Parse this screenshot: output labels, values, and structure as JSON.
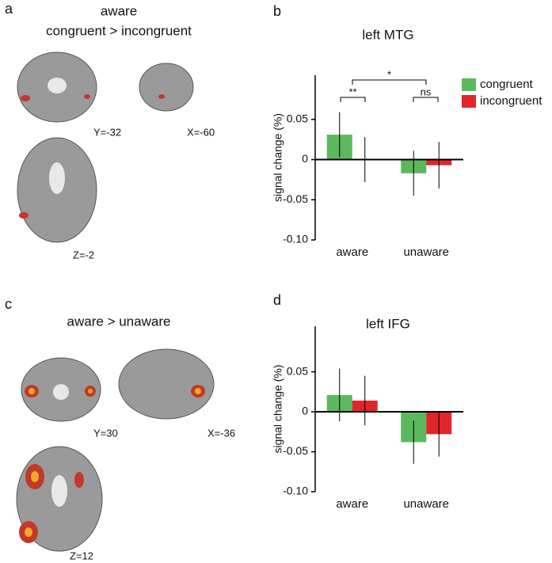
{
  "panels": [
    {
      "label": "a",
      "title": [
        "aware",
        "congruent > incongruent"
      ],
      "slices": [
        "Y=-32",
        "X=-60",
        "Z=-2"
      ]
    },
    {
      "label": "c",
      "title": [
        "aware > unaware"
      ],
      "slices": [
        "Y=30",
        "X=-36",
        "Z=12"
      ]
    }
  ],
  "chart_data": [
    {
      "type": "bar",
      "panel": "b",
      "title": "left MTG",
      "ylabel": "signal change (%)",
      "categories": [
        "aware",
        "unaware"
      ],
      "series": [
        {
          "name": "congruent",
          "color": "#5cb85c",
          "values": [
            0.031,
            -0.017
          ],
          "errors": [
            0.028,
            0.028
          ]
        },
        {
          "name": "incongruent",
          "color": "#e0262b",
          "values": [
            0.0,
            -0.007
          ],
          "errors": [
            0.028,
            0.029
          ]
        }
      ],
      "ylim": [
        -0.1,
        0.105
      ],
      "yticks": [
        0.05,
        0,
        -0.05,
        {
          "value": -0.1,
          "label": "-0.10"
        }
      ],
      "legend": "right",
      "annotations": [
        "**",
        "ns",
        "*"
      ]
    },
    {
      "type": "bar",
      "panel": "d",
      "title": "left IFG",
      "ylabel": "signal change (%)",
      "categories": [
        "aware",
        "unaware"
      ],
      "series": [
        {
          "name": "congruent",
          "color": "#5cb85c",
          "values": [
            0.021,
            -0.038
          ],
          "errors": [
            0.033,
            0.027
          ]
        },
        {
          "name": "incongruent",
          "color": "#e0262b",
          "values": [
            0.014,
            -0.028
          ],
          "errors": [
            0.031,
            0.028
          ]
        }
      ],
      "ylim": [
        -0.1,
        0.107
      ],
      "yticks": [
        0.05,
        0,
        -0.05,
        {
          "value": -0.1,
          "label": "-0.10"
        }
      ],
      "legend": false
    }
  ]
}
